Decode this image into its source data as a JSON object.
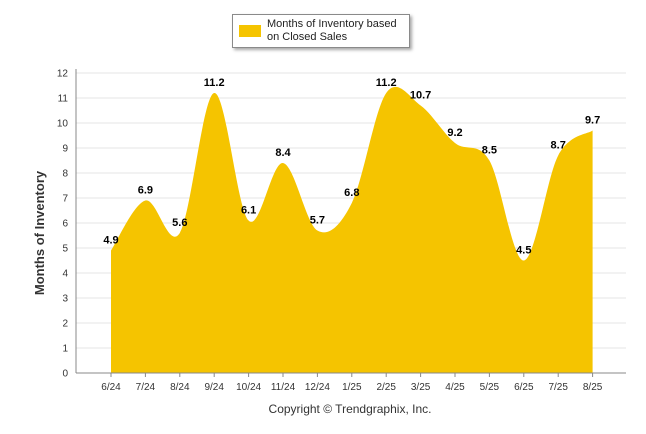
{
  "colors": {
    "fill": "#F5C400",
    "grid": "#e6e6e6",
    "axis": "#888888",
    "text": "#333333"
  },
  "legend": {
    "label": "Months of Inventory based on Closed Sales"
  },
  "copyright": "Copyright © Trendgraphix, Inc.",
  "chart_data": {
    "type": "area",
    "title": "",
    "xlabel": "",
    "ylabel": "Months of Inventory",
    "categories": [
      "6/24",
      "7/24",
      "8/24",
      "9/24",
      "10/24",
      "11/24",
      "12/24",
      "1/25",
      "2/25",
      "3/25",
      "4/25",
      "5/25",
      "6/25",
      "7/25",
      "8/25"
    ],
    "series": [
      {
        "name": "Months of Inventory based on Closed Sales",
        "values": [
          4.9,
          6.9,
          5.6,
          11.2,
          6.1,
          8.4,
          5.7,
          6.8,
          11.2,
          10.7,
          9.2,
          8.5,
          4.5,
          8.7,
          9.7
        ]
      }
    ],
    "ylim": [
      0,
      12
    ],
    "yticks": [
      0,
      1,
      2,
      3,
      4,
      5,
      6,
      7,
      8,
      9,
      10,
      11,
      12
    ],
    "grid": true,
    "legend_position": "top-center"
  }
}
